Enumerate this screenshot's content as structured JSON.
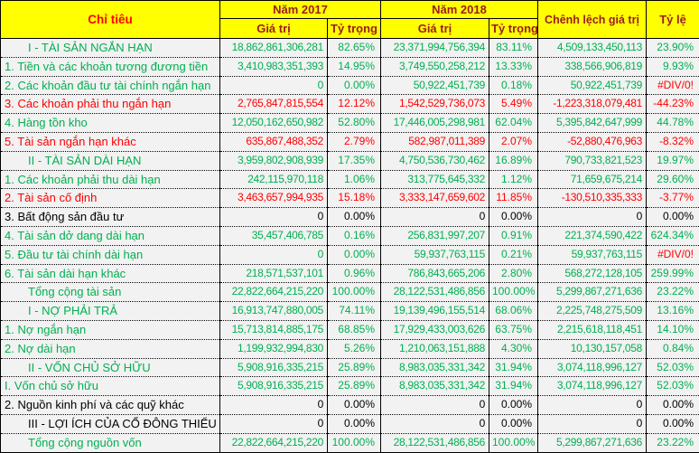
{
  "colors": {
    "header_bg": "#FFFF00",
    "header_text": "#9C1C1C",
    "header_chi_tieu_text": "#FF0000",
    "data_bg": "#F2F2F2",
    "positive": "#00B050",
    "negative": "#FF0000",
    "neutral": "#000000"
  },
  "header": {
    "chi_tieu": "Chỉ tiêu",
    "nam_2017": "Năm 2017",
    "nam_2018": "Năm 2018",
    "gia_tri": "Giá trị",
    "ty_trong": "Tỷ trọng",
    "chenh_lech": "Chênh lệch giá trị",
    "ty_le": "Tỷ lệ"
  },
  "rows": [
    {
      "label": "I - TÀI SẢN NGẮN HẠN",
      "indent": true,
      "color": "green",
      "v2017": "18,862,861,306,281",
      "p2017": "82.65%",
      "v2018": "23,371,994,756,394",
      "p2018": "83.11%",
      "diff": "4,509,133,450,113",
      "rate": "23.90%"
    },
    {
      "label": "1. Tiền và các khoản tương đương tiền",
      "indent": false,
      "color": "green",
      "v2017": "3,410,983,351,393",
      "p2017": "14.95%",
      "v2018": "3,749,550,258,212",
      "p2018": "13.33%",
      "diff": "338,566,906,819",
      "rate": "9.93%"
    },
    {
      "label": "2. Các khoản đầu tư tài chính ngắn hạn",
      "indent": false,
      "color": "green",
      "v2017": "0",
      "p2017": "0.00%",
      "v2018": "50,922,451,739",
      "p2018": "0.18%",
      "diff": "50,922,451,739",
      "rate": "#DIV/0!",
      "rate_color": "red"
    },
    {
      "label": "3. Các khoản phải thu ngắn hạn",
      "indent": false,
      "color": "red",
      "v2017": "2,765,847,815,554",
      "p2017": "12.12%",
      "v2018": "1,542,529,736,073",
      "p2018": "5.49%",
      "diff": "-1,223,318,079,481",
      "rate": "-44.23%"
    },
    {
      "label": "4. Hàng tồn kho",
      "indent": false,
      "color": "green",
      "v2017": "12,050,162,650,982",
      "p2017": "52.80%",
      "v2018": "17,446,005,298,981",
      "p2018": "62.04%",
      "diff": "5,395,842,647,999",
      "rate": "44.78%"
    },
    {
      "label": "5. Tài sản ngắn hạn khác",
      "indent": false,
      "color": "red",
      "v2017": "635,867,488,352",
      "p2017": "2.79%",
      "v2018": "582,987,011,389",
      "p2018": "2.07%",
      "diff": "-52,880,476,963",
      "rate": "-8.32%"
    },
    {
      "label": "II - TÀI SẢN DÀI HẠN",
      "indent": true,
      "color": "green",
      "v2017": "3,959,802,908,939",
      "p2017": "17.35%",
      "v2018": "4,750,536,730,462",
      "p2018": "16.89%",
      "diff": "790,733,821,523",
      "rate": "19.97%"
    },
    {
      "label": "1. Các khoản phải thu dài hạn",
      "indent": false,
      "color": "green",
      "v2017": "242,115,970,118",
      "p2017": "1.06%",
      "v2018": "313,775,645,332",
      "p2018": "1.12%",
      "diff": "71,659,675,214",
      "rate": "29.60%"
    },
    {
      "label": "2. Tài sản cố định",
      "indent": false,
      "color": "red",
      "v2017": "3,463,657,994,935",
      "p2017": "15.18%",
      "v2018": "3,333,147,659,602",
      "p2018": "11.85%",
      "diff": "-130,510,335,333",
      "rate": "-3.77%"
    },
    {
      "label": "3. Bất động sản đầu tư",
      "indent": false,
      "color": "black",
      "v2017": "0",
      "p2017": "0.00%",
      "v2018": "0",
      "p2018": "0.00%",
      "diff": "0",
      "rate": "0.00%"
    },
    {
      "label": "4. Tài sản dở dang dài hạn",
      "indent": false,
      "color": "green",
      "v2017": "35,457,406,785",
      "p2017": "0.16%",
      "v2018": "256,831,997,207",
      "p2018": "0.91%",
      "diff": "221,374,590,422",
      "rate": "624.34%"
    },
    {
      "label": "5. Đầu tư tài chính dài hạn",
      "indent": false,
      "color": "green",
      "v2017": "0",
      "p2017": "0.00%",
      "v2018": "59,937,763,115",
      "p2018": "0.21%",
      "diff": "59,937,763,115",
      "rate": "#DIV/0!",
      "rate_color": "red"
    },
    {
      "label": "6. Tài sản dài hạn khác",
      "indent": false,
      "color": "green",
      "v2017": "218,571,537,101",
      "p2017": "0.96%",
      "v2018": "786,843,665,206",
      "p2018": "2.80%",
      "diff": "568,272,128,105",
      "rate": "259.99%"
    },
    {
      "label": "Tổng cộng tài sản",
      "indent": true,
      "color": "green",
      "v2017": "22,822,664,215,220",
      "p2017": "100.00%",
      "v2018": "28,122,531,486,856",
      "p2018": "100.00%",
      "diff": "5,299,867,271,636",
      "rate": "23.22%"
    },
    {
      "label": "I - NỢ PHẢI TRẢ",
      "indent": true,
      "color": "green",
      "v2017": "16,913,747,880,005",
      "p2017": "74.11%",
      "v2018": "19,139,496,155,514",
      "p2018": "68.06%",
      "diff": "2,225,748,275,509",
      "rate": "13.16%"
    },
    {
      "label": "1. Nợ ngắn hạn",
      "indent": false,
      "color": "green",
      "v2017": "15,713,814,885,175",
      "p2017": "68.85%",
      "v2018": "17,929,433,003,626",
      "p2018": "63.75%",
      "diff": "2,215,618,118,451",
      "rate": "14.10%"
    },
    {
      "label": "2. Nợ dài hạn",
      "indent": false,
      "color": "green",
      "v2017": "1,199,932,994,830",
      "p2017": "5.26%",
      "v2018": "1,210,063,151,888",
      "p2018": "4.30%",
      "diff": "10,130,157,058",
      "rate": "0.84%"
    },
    {
      "label": "II - VỐN CHỦ SỞ HỮU",
      "indent": true,
      "color": "green",
      "v2017": "5,908,916,335,215",
      "p2017": "25.89%",
      "v2018": "8,983,035,331,342",
      "p2018": "31.94%",
      "diff": "3,074,118,996,127",
      "rate": "52.03%"
    },
    {
      "label": "I. Vốn chủ sở hữu",
      "indent": false,
      "color": "green",
      "v2017": "5,908,916,335,215",
      "p2017": "25.89%",
      "v2018": "8,983,035,331,342",
      "p2018": "31.94%",
      "diff": "3,074,118,996,127",
      "rate": "52.03%"
    },
    {
      "label": "2. Nguồn kinh phí và các quỹ khác",
      "indent": false,
      "color": "black",
      "v2017": "0",
      "p2017": "0.00%",
      "v2018": "0",
      "p2018": "0.00%",
      "diff": "0",
      "rate": "0.00%"
    },
    {
      "label": "III - LỢI ÍCH CỦA CỔ ĐÔNG THIỂU SỐ",
      "indent": true,
      "color": "black",
      "v2017": "0",
      "p2017": "0.00%",
      "v2018": "0",
      "p2018": "0.00%",
      "diff": "0",
      "rate": "0.00%"
    },
    {
      "label": "Tổng cộng nguồn vốn",
      "indent": true,
      "color": "green",
      "v2017": "22,822,664,215,220",
      "p2017": "100.00%",
      "v2018": "28,122,531,486,856",
      "p2018": "100.00%",
      "diff": "5,299,867,271,636",
      "rate": "23.22%"
    }
  ]
}
